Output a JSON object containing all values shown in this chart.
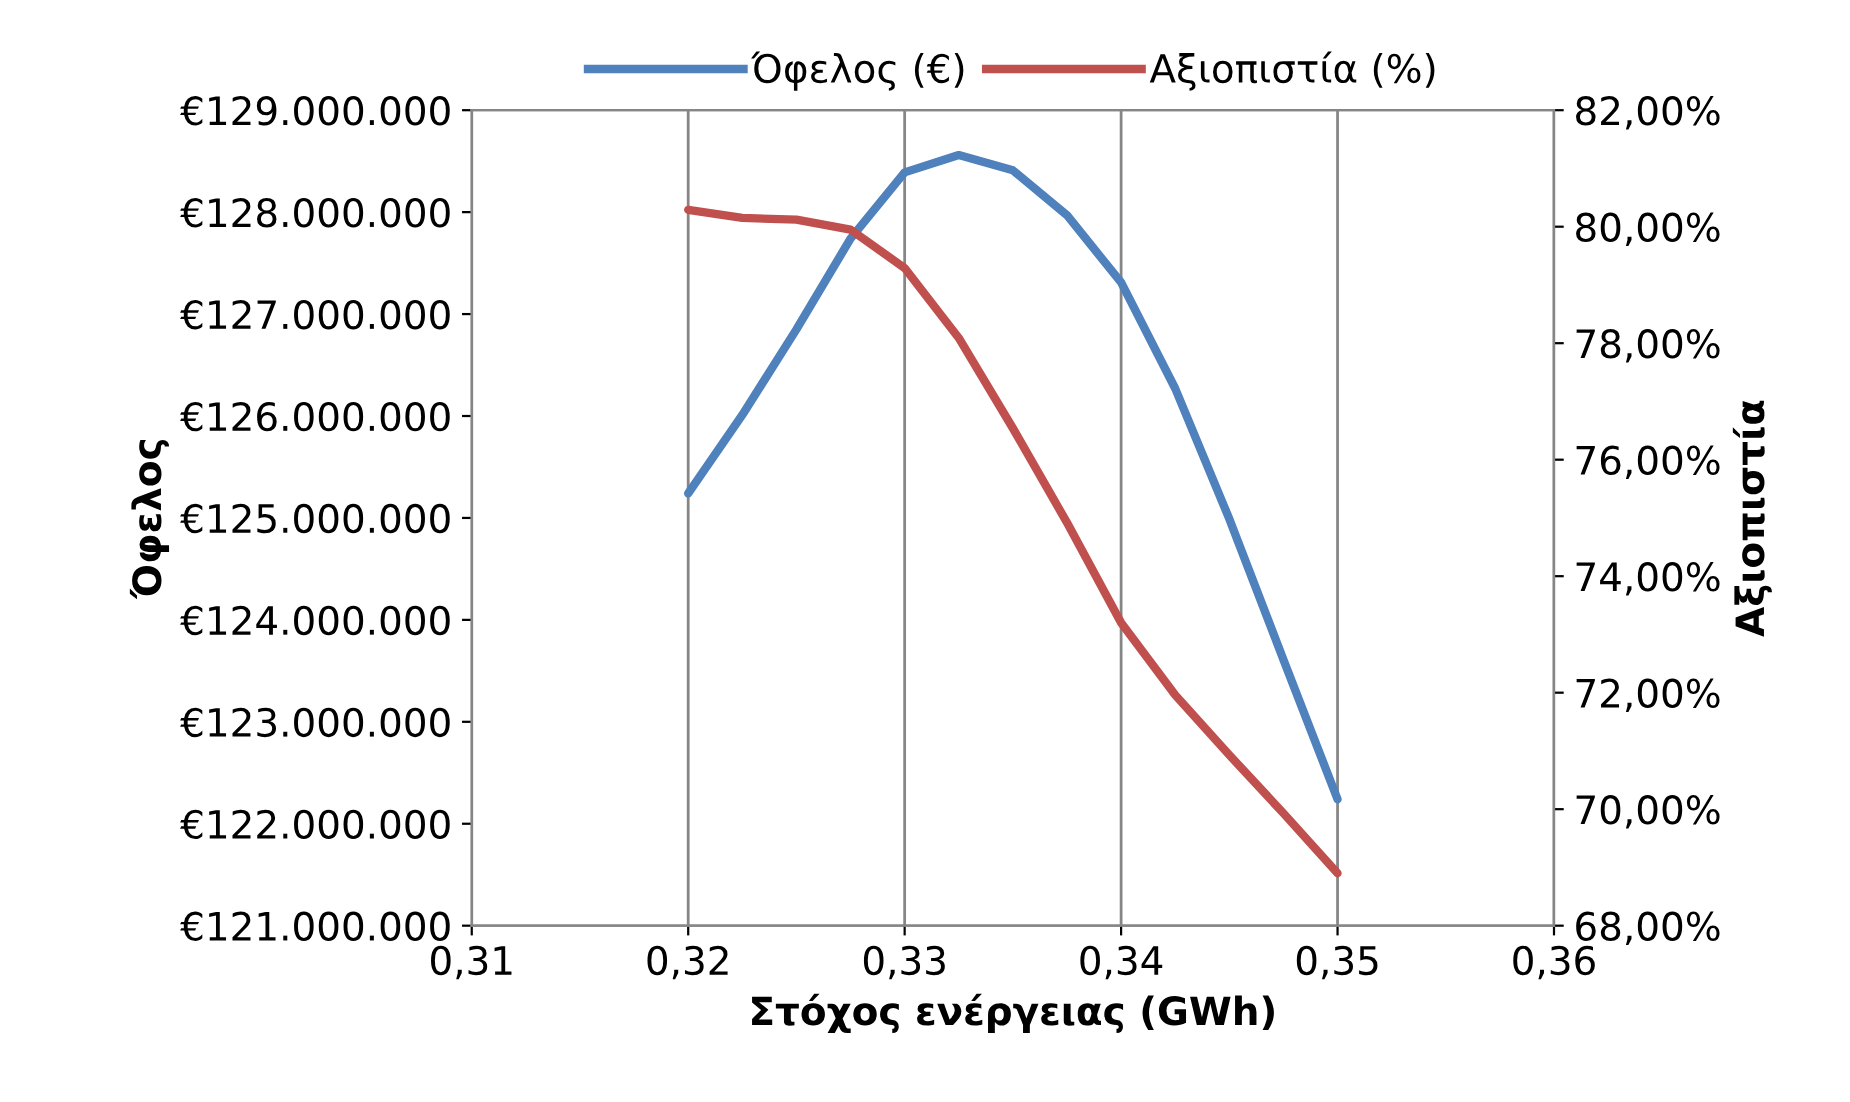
{
  "chart_data": {
    "type": "line",
    "xlabel": "Στόχος ενέργειας (GWh)",
    "ylabel": "Όφελος",
    "y2label": "Αξιοπιστία",
    "x": [
      0.32,
      0.3225,
      0.325,
      0.3275,
      0.33,
      0.3325,
      0.335,
      0.3375,
      0.34,
      0.3425,
      0.345,
      0.3475,
      0.35
    ],
    "series": [
      {
        "name": "Όφελος (€)",
        "color": "#4f81bd",
        "values": [
          125240000,
          126010000,
          126850000,
          127740000,
          128390000,
          128560000,
          128410000,
          127970000,
          127310000,
          126270000,
          124990000,
          123610000,
          122240000
        ]
      },
      {
        "name": "Αξιοπιστία (%)",
        "color": "#c0504d",
        "axis": "y2",
        "values": [
          80.29,
          80.15,
          80.12,
          79.95,
          79.29,
          78.09,
          76.54,
          74.92,
          73.2,
          71.96,
          70.93,
          69.93,
          68.9
        ]
      }
    ],
    "xlim": [
      0.31,
      0.36
    ],
    "xticks": [
      {
        "value": 0.31,
        "label": "0,31"
      },
      {
        "value": 0.32,
        "label": "0,32"
      },
      {
        "value": 0.33,
        "label": "0,33"
      },
      {
        "value": 0.34,
        "label": "0,34"
      },
      {
        "value": 0.35,
        "label": "0,35"
      },
      {
        "value": 0.36,
        "label": "0,36"
      }
    ],
    "ylim": [
      121000000,
      129000000
    ],
    "yticks": [
      {
        "value": 121000000,
        "label": "€121.000.000"
      },
      {
        "value": 122000000,
        "label": "€122.000.000"
      },
      {
        "value": 123000000,
        "label": "€123.000.000"
      },
      {
        "value": 124000000,
        "label": "€124.000.000"
      },
      {
        "value": 125000000,
        "label": "€125.000.000"
      },
      {
        "value": 126000000,
        "label": "€126.000.000"
      },
      {
        "value": 127000000,
        "label": "€127.000.000"
      },
      {
        "value": 128000000,
        "label": "€128.000.000"
      },
      {
        "value": 129000000,
        "label": "€129.000.000"
      }
    ],
    "y2lim": [
      68,
      82
    ],
    "y2ticks": [
      {
        "value": 68,
        "label": "68,00%"
      },
      {
        "value": 70,
        "label": "70,00%"
      },
      {
        "value": 72,
        "label": "72,00%"
      },
      {
        "value": 74,
        "label": "74,00%"
      },
      {
        "value": 76,
        "label": "76,00%"
      },
      {
        "value": 78,
        "label": "78,00%"
      },
      {
        "value": 80,
        "label": "80,00%"
      },
      {
        "value": 82,
        "label": "82,00%"
      }
    ],
    "grid": "x",
    "legend": "top",
    "marker": "none",
    "line_style": "solid"
  }
}
